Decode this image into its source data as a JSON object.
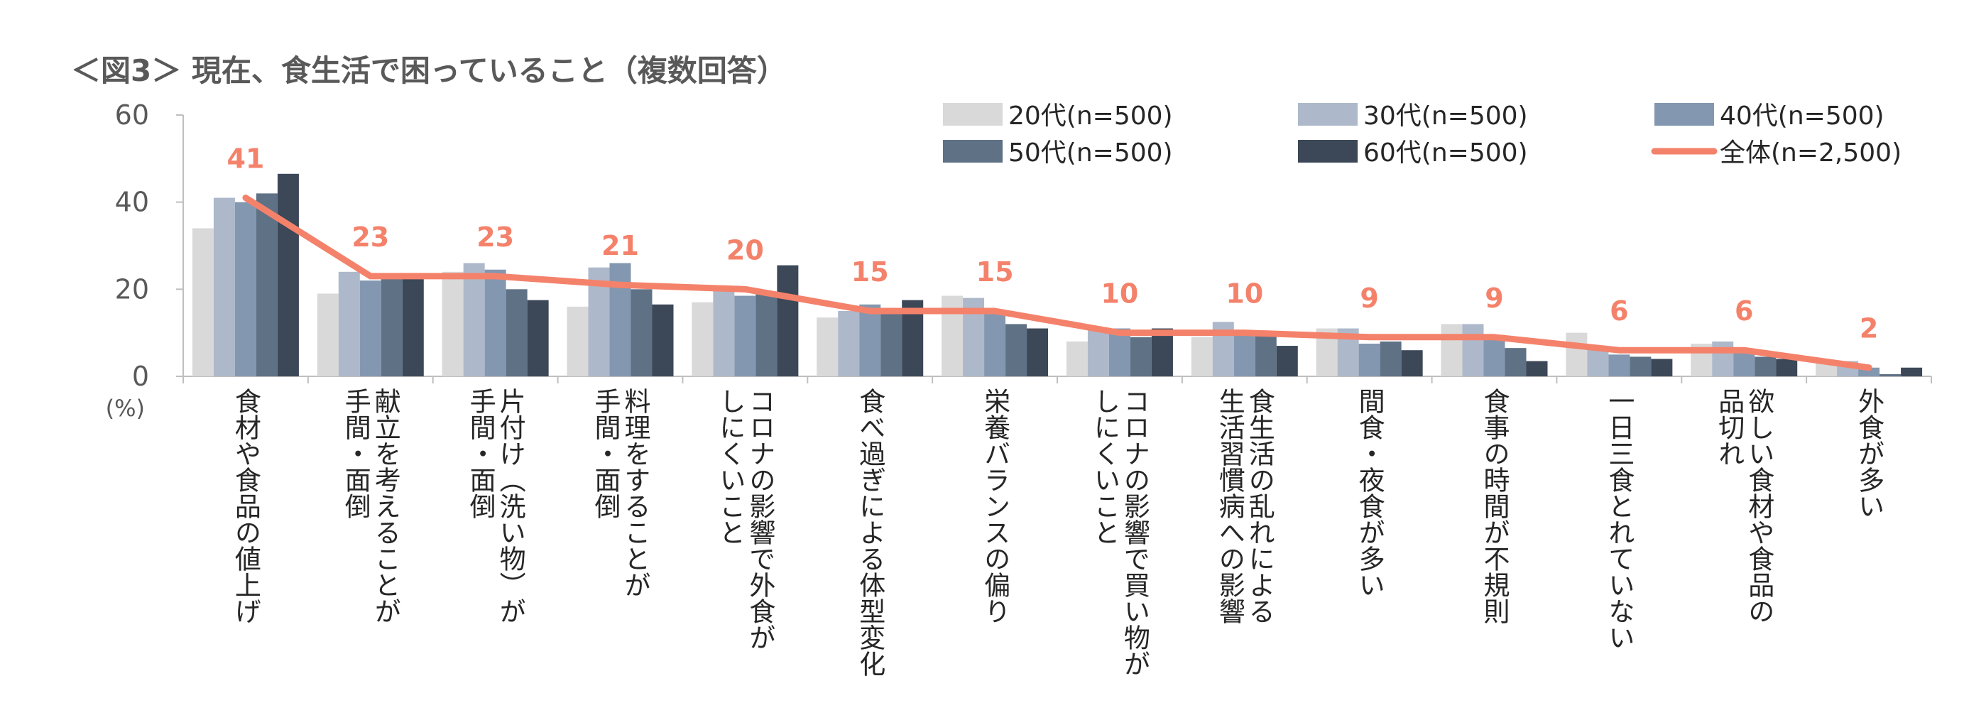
{
  "chart_data": {
    "type": "bar",
    "title": "＜図3＞ 現在、食生活で困っていること（複数回答）",
    "ylabel": "(%)",
    "ylim": [
      0,
      60
    ],
    "yticks": [
      "0",
      "20",
      "40",
      "60"
    ],
    "grid": false,
    "legend_position": "top-right",
    "categories": [
      [
        "食材や食品の値上げ"
      ],
      [
        "献立を考えることが",
        "手間・面倒"
      ],
      [
        "片付け（洗い物）が",
        "手間・面倒"
      ],
      [
        "料理をすることが",
        "手間・面倒"
      ],
      [
        "コロナの影響で外食が",
        "しにくいこと"
      ],
      [
        "食べ過ぎによる体型変化"
      ],
      [
        "栄養バランスの偏り"
      ],
      [
        "コロナの影響で買い物が",
        "しにくいこと"
      ],
      [
        "食生活の乱れによる",
        "生活習慣病への影響"
      ],
      [
        "間食・夜食が多い"
      ],
      [
        "食事の時間が不規則"
      ],
      [
        "一日三食とれていない"
      ],
      [
        "欲しい食材や食品の",
        "品切れ"
      ],
      [
        "外食が多い"
      ]
    ],
    "series": [
      {
        "name": "20代(n=500)",
        "color": "#d9d9d9",
        "values": [
          34,
          19,
          24,
          16,
          17,
          13.5,
          18.5,
          8,
          9,
          11,
          12,
          10,
          7.5,
          3
        ]
      },
      {
        "name": "30代(n=500)",
        "color": "#adb9ca",
        "values": [
          41,
          24,
          26,
          25,
          20,
          15,
          18,
          11,
          12.5,
          11,
          12,
          7,
          8,
          3.5
        ]
      },
      {
        "name": "40代(n=500)",
        "color": "#8497b0",
        "values": [
          40,
          22,
          24.5,
          26,
          18.5,
          16.5,
          15,
          11,
          10,
          7.5,
          9.5,
          5,
          5.5,
          2
        ]
      },
      {
        "name": "50代(n=500)",
        "color": "#5f7185",
        "values": [
          42,
          23.5,
          20,
          20,
          19,
          15,
          12,
          9,
          10,
          8,
          6.5,
          4.5,
          4.5,
          0.5
        ]
      },
      {
        "name": "60代(n=500)",
        "color": "#3c4858",
        "values": [
          46.5,
          22.5,
          17.5,
          16.5,
          25.5,
          17.5,
          11,
          11,
          7,
          6,
          3.5,
          4,
          4,
          2
        ]
      }
    ],
    "total_line": {
      "name": "全体(n=2,500)",
      "color": "#f4826b",
      "values": [
        41,
        23,
        23,
        21,
        20,
        15,
        15,
        10,
        10,
        9,
        9,
        6,
        6,
        2
      ],
      "labels": [
        "41",
        "23",
        "23",
        "21",
        "20",
        "15",
        "15",
        "10",
        "10",
        "9",
        "9",
        "6",
        "6",
        "2"
      ]
    }
  }
}
